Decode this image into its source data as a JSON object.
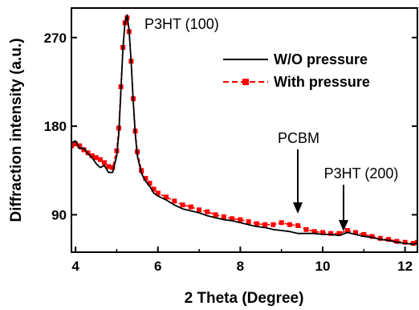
{
  "chart_data": {
    "type": "line",
    "title": "",
    "xlabel": "2 Theta (Degree)",
    "ylabel": "Diffraction intensity (a.u.)",
    "xlim": [
      3.9,
      12.3
    ],
    "ylim": [
      52,
      300
    ],
    "x_ticks": [
      4,
      6,
      8,
      10,
      12
    ],
    "y_ticks": [
      90,
      180,
      270
    ],
    "grid": false,
    "legend_position": "top-right",
    "series": [
      {
        "name": "W/O pressure",
        "color": "#000000",
        "style": "solid-line",
        "x": [
          3.9,
          4.0,
          4.1,
          4.2,
          4.3,
          4.4,
          4.5,
          4.6,
          4.7,
          4.8,
          4.9,
          5.0,
          5.05,
          5.1,
          5.15,
          5.2,
          5.25,
          5.3,
          5.35,
          5.4,
          5.45,
          5.5,
          5.6,
          5.7,
          5.8,
          5.9,
          6.0,
          6.2,
          6.4,
          6.6,
          6.8,
          7.0,
          7.2,
          7.4,
          7.6,
          7.8,
          8.0,
          8.2,
          8.4,
          8.6,
          8.8,
          9.0,
          9.2,
          9.4,
          9.6,
          9.8,
          10.0,
          10.2,
          10.4,
          10.6,
          10.8,
          11.0,
          11.2,
          11.4,
          11.6,
          11.8,
          12.0,
          12.2,
          12.3
        ],
        "y": [
          163,
          165,
          157,
          158,
          152,
          148,
          142,
          138,
          140,
          133,
          133,
          150,
          172,
          215,
          258,
          285,
          293,
          278,
          245,
          205,
          172,
          150,
          132,
          124,
          119,
          112,
          109,
          105,
          100,
          96,
          94,
          92,
          89,
          87,
          85,
          84,
          82,
          80,
          78,
          77,
          75,
          74,
          73,
          71,
          71,
          71,
          70,
          70,
          69,
          72,
          70,
          68,
          67,
          65,
          64,
          62,
          61,
          60,
          61
        ]
      },
      {
        "name": "With pressure",
        "color": "#ff0000",
        "style": "dash-square",
        "x": [
          3.9,
          4.0,
          4.1,
          4.2,
          4.3,
          4.4,
          4.5,
          4.6,
          4.7,
          4.8,
          4.9,
          5.0,
          5.05,
          5.1,
          5.15,
          5.2,
          5.25,
          5.3,
          5.35,
          5.4,
          5.45,
          5.5,
          5.6,
          5.7,
          5.8,
          5.9,
          6.0,
          6.2,
          6.4,
          6.6,
          6.8,
          7.0,
          7.2,
          7.4,
          7.6,
          7.8,
          8.0,
          8.2,
          8.4,
          8.6,
          8.8,
          9.0,
          9.2,
          9.4,
          9.6,
          9.8,
          10.0,
          10.2,
          10.4,
          10.6,
          10.8,
          11.0,
          11.2,
          11.4,
          11.6,
          11.8,
          12.0,
          12.2,
          12.3
        ],
        "y": [
          160,
          162,
          160,
          156,
          153,
          150,
          148,
          146,
          143,
          139,
          138,
          155,
          178,
          220,
          260,
          285,
          290,
          276,
          246,
          208,
          175,
          154,
          135,
          127,
          122,
          116,
          112,
          108,
          104,
          100,
          98,
          95,
          93,
          90,
          88,
          86,
          85,
          83,
          81,
          80,
          80,
          82,
          80,
          79,
          75,
          73,
          72,
          71,
          71,
          74,
          72,
          70,
          68,
          66,
          65,
          63,
          62,
          61,
          62
        ]
      }
    ],
    "annotations": [
      {
        "text": "P3HT (100)",
        "x": 5.3,
        "y": 292,
        "arrow": false
      },
      {
        "text": "PCBM",
        "x": 9.45,
        "y": 79,
        "arrow": true
      },
      {
        "text": "P3HT (200)",
        "x": 10.55,
        "y": 74,
        "arrow": true
      }
    ]
  }
}
